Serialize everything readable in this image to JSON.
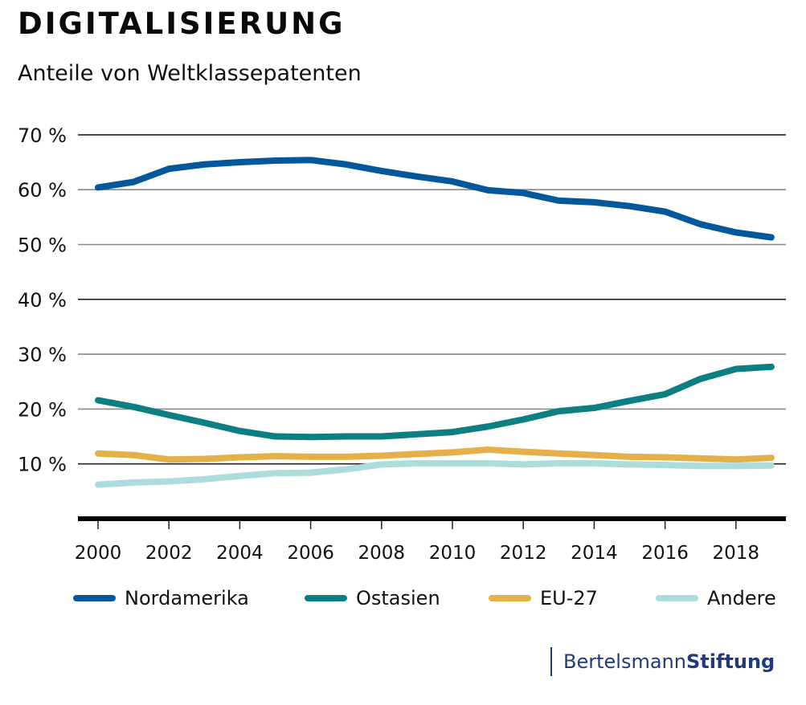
{
  "header": {
    "title": "DIGITALISIERUNG",
    "subtitle": "Anteile von Weltklassepatenten"
  },
  "branding": {
    "logo_regular": "Bertelsmann",
    "logo_bold": "Stiftung",
    "color": "#1f3a80"
  },
  "chart_data": {
    "type": "line",
    "title": "DIGITALISIERUNG",
    "subtitle": "Anteile von Weltklassepatenten",
    "xlabel": "",
    "ylabel": "",
    "x": [
      2000,
      2001,
      2002,
      2003,
      2004,
      2005,
      2006,
      2007,
      2008,
      2009,
      2010,
      2011,
      2012,
      2013,
      2014,
      2015,
      2016,
      2017,
      2018,
      2019
    ],
    "x_tick_labels": [
      "2000",
      "2002",
      "2004",
      "2006",
      "2008",
      "2010",
      "2012",
      "2014",
      "2016",
      "2018"
    ],
    "x_ticks": [
      2000,
      2002,
      2004,
      2006,
      2008,
      2010,
      2012,
      2014,
      2016,
      2018
    ],
    "y_ticks": [
      10,
      20,
      30,
      40,
      50,
      60,
      70
    ],
    "y_tick_labels": [
      "10 %",
      "20 %",
      "30 %",
      "40 %",
      "50 %",
      "60 %",
      "70 %"
    ],
    "ylim": [
      0,
      70
    ],
    "xlim": [
      1999.5,
      2019.3
    ],
    "grid": "horizontal",
    "legend_position": "bottom",
    "series": [
      {
        "name": "Nordamerika",
        "color": "#03589c",
        "values": [
          60.4,
          61.4,
          63.8,
          64.6,
          65.0,
          65.3,
          65.4,
          64.6,
          63.4,
          62.4,
          61.5,
          59.9,
          59.4,
          58.0,
          57.7,
          57.0,
          56.0,
          53.7,
          52.2,
          51.3
        ]
      },
      {
        "name": "Ostasien",
        "color": "#0b7f82",
        "values": [
          21.6,
          20.4,
          18.9,
          17.5,
          16.0,
          15.0,
          14.9,
          15.0,
          15.0,
          15.4,
          15.8,
          16.8,
          18.1,
          19.6,
          20.2,
          21.5,
          22.7,
          25.5,
          27.3,
          27.7
        ]
      },
      {
        "name": "EU-27",
        "color": "#e5b04a",
        "values": [
          11.9,
          11.6,
          10.8,
          10.9,
          11.2,
          11.4,
          11.3,
          11.3,
          11.5,
          11.8,
          12.1,
          12.6,
          12.2,
          11.9,
          11.6,
          11.3,
          11.2,
          11.0,
          10.8,
          11.1
        ]
      },
      {
        "name": "Andere",
        "color": "#acdcdc",
        "values": [
          6.2,
          6.6,
          6.8,
          7.2,
          7.8,
          8.3,
          8.4,
          9.0,
          9.9,
          10.1,
          10.1,
          10.1,
          9.9,
          10.1,
          10.1,
          9.9,
          9.8,
          9.6,
          9.6,
          9.7
        ]
      }
    ]
  }
}
